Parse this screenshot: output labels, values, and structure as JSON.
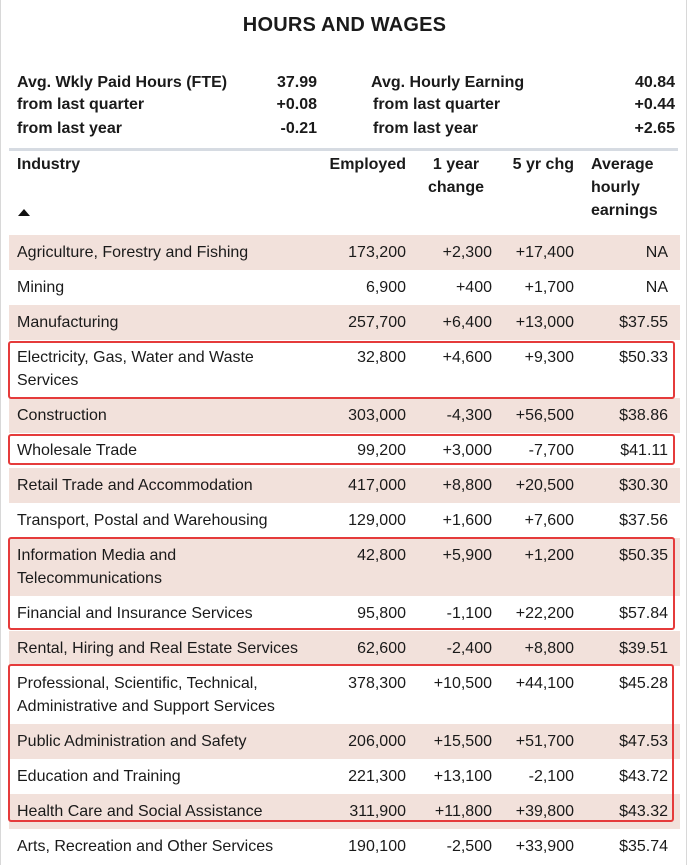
{
  "title": "HOURS AND WAGES",
  "summary": {
    "hours": {
      "label": "Avg. Wkly Paid Hours (FTE)",
      "value": "37.99",
      "q_label": "from last quarter",
      "q_value": "+0.08",
      "y_label": "from last year",
      "y_value": "-0.21"
    },
    "earnings": {
      "label": "Avg. Hourly Earning",
      "value": "40.84",
      "q_label": "from last quarter",
      "q_value": "+0.44",
      "y_label": "from last year",
      "y_value": "+2.65"
    }
  },
  "table": {
    "headers": {
      "industry": "Industry",
      "employed": "Employed",
      "change1_a": "1 year",
      "change1_b": "change",
      "change5": "5 yr chg",
      "earn_a": "Average",
      "earn_b": "hourly",
      "earn_c": "earnings"
    },
    "sort_icon": "triangle-up-icon",
    "rows": [
      {
        "industry": "Agriculture, Forestry and Fishing",
        "employed": "173,200",
        "one_year": "+2,300",
        "five_year": "+17,400",
        "earnings": "NA"
      },
      {
        "industry": "Mining",
        "employed": "6,900",
        "one_year": "+400",
        "five_year": "+1,700",
        "earnings": "NA"
      },
      {
        "industry": "Manufacturing",
        "employed": "257,700",
        "one_year": "+6,400",
        "five_year": "+13,000",
        "earnings": "$37.55"
      },
      {
        "industry": "Electricity, Gas, Water and Waste Services",
        "employed": "32,800",
        "one_year": "+4,600",
        "five_year": "+9,300",
        "earnings": "$50.33"
      },
      {
        "industry": "Construction",
        "employed": "303,000",
        "one_year": "-4,300",
        "five_year": "+56,500",
        "earnings": "$38.86"
      },
      {
        "industry": "Wholesale Trade",
        "employed": "99,200",
        "one_year": "+3,000",
        "five_year": "-7,700",
        "earnings": "$41.11"
      },
      {
        "industry": "Retail Trade and Accommodation",
        "employed": "417,000",
        "one_year": "+8,800",
        "five_year": "+20,500",
        "earnings": "$30.30"
      },
      {
        "industry": "Transport, Postal and Warehousing",
        "employed": "129,000",
        "one_year": "+1,600",
        "five_year": "+7,600",
        "earnings": "$37.56"
      },
      {
        "industry": "Information Media and Telecommunications",
        "employed": "42,800",
        "one_year": "+5,900",
        "five_year": "+1,200",
        "earnings": "$50.35"
      },
      {
        "industry": "Financial and Insurance Services",
        "employed": "95,800",
        "one_year": "-1,100",
        "five_year": "+22,200",
        "earnings": "$57.84"
      },
      {
        "industry": "Rental, Hiring and Real Estate Services",
        "employed": "62,600",
        "one_year": "-2,400",
        "five_year": "+8,800",
        "earnings": "$39.51"
      },
      {
        "industry": "Professional, Scientific, Technical, Administrative and Support Services",
        "employed": "378,300",
        "one_year": "+10,500",
        "five_year": "+44,100",
        "earnings": "$45.28"
      },
      {
        "industry": "Public Administration and Safety",
        "employed": "206,000",
        "one_year": "+15,500",
        "five_year": "+51,700",
        "earnings": "$47.53"
      },
      {
        "industry": "Education and Training",
        "employed": "221,300",
        "one_year": "+13,100",
        "five_year": "-2,100",
        "earnings": "$43.72"
      },
      {
        "industry": "Health Care and Social Assistance",
        "employed": "311,900",
        "one_year": "+11,800",
        "five_year": "+39,800",
        "earnings": "$43.32"
      },
      {
        "industry": "Arts, Recreation and Other Services",
        "employed": "190,100",
        "one_year": "-2,500",
        "five_year": "+33,900",
        "earnings": "$35.74"
      }
    ]
  },
  "colors": {
    "row_shade": "#f2e1db",
    "highlight": "#e53b3b",
    "separator": "#d6dbe2"
  }
}
